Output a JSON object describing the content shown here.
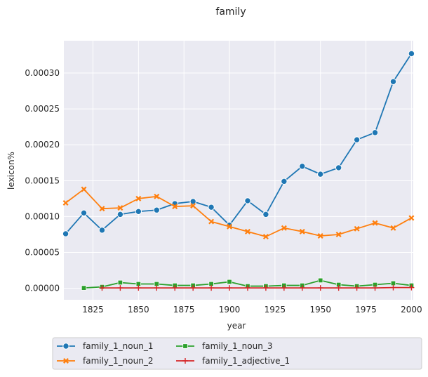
{
  "chart_data": {
    "type": "line",
    "title": "family",
    "xlabel": "year",
    "ylabel": "lexicon%",
    "xlim": [
      1809,
      2001
    ],
    "ylim": [
      -1.6e-05,
      0.000345
    ],
    "xticks": [
      1825,
      1850,
      1875,
      1900,
      1925,
      1950,
      1975,
      2000
    ],
    "yticks": [
      0.0,
      5e-05,
      0.0001,
      0.00015,
      0.0002,
      0.00025,
      0.0003
    ],
    "ytick_labels": [
      "0.00000",
      "0.00005",
      "0.00010",
      "0.00015",
      "0.00020",
      "0.00025",
      "0.00030"
    ],
    "grid": true,
    "legend_position": "bottom-center",
    "series": [
      {
        "name": "family_1_noun_1",
        "color": "#1f77b4",
        "marker": "circle",
        "x": [
          1810,
          1820,
          1830,
          1840,
          1850,
          1860,
          1870,
          1880,
          1890,
          1900,
          1910,
          1920,
          1930,
          1940,
          1950,
          1960,
          1970,
          1980,
          1990,
          2000
        ],
        "y": [
          7.6e-05,
          0.000105,
          8.1e-05,
          0.000103,
          0.000107,
          0.000109,
          0.000118,
          0.000121,
          0.000113,
          8.8e-05,
          0.000122,
          0.000103,
          0.000149,
          0.00017,
          0.000159,
          0.000168,
          0.000207,
          0.000217,
          0.000288,
          0.000327
        ]
      },
      {
        "name": "family_1_noun_2",
        "color": "#ff7f0e",
        "marker": "x",
        "x": [
          1810,
          1820,
          1830,
          1840,
          1850,
          1860,
          1870,
          1880,
          1890,
          1900,
          1910,
          1920,
          1930,
          1940,
          1950,
          1960,
          1970,
          1980,
          1990,
          2000
        ],
        "y": [
          0.000119,
          0.000138,
          0.000111,
          0.000112,
          0.000125,
          0.000128,
          0.000114,
          0.000115,
          9.3e-05,
          8.6e-05,
          7.9e-05,
          7.2e-05,
          8.4e-05,
          7.9e-05,
          7.3e-05,
          7.5e-05,
          8.3e-05,
          9.1e-05,
          8.4e-05,
          9.8e-05
        ]
      },
      {
        "name": "family_1_noun_3",
        "color": "#2ca02c",
        "marker": "square",
        "x": [
          1820,
          1830,
          1840,
          1850,
          1860,
          1870,
          1880,
          1890,
          1900,
          1910,
          1920,
          1930,
          1940,
          1950,
          1960,
          1970,
          1980,
          1990,
          2000
        ],
        "y": [
          5e-07,
          2e-06,
          8e-06,
          6e-06,
          6e-06,
          4e-06,
          4e-06,
          6e-06,
          9e-06,
          3e-06,
          3e-06,
          4e-06,
          4e-06,
          1.1e-05,
          5e-06,
          3e-06,
          5e-06,
          7e-06,
          4e-06
        ]
      },
      {
        "name": "family_1_adjective_1",
        "color": "#d62728",
        "marker": "plus",
        "x": [
          1830,
          1840,
          1850,
          1860,
          1870,
          1880,
          1890,
          1900,
          1910,
          1920,
          1930,
          1940,
          1950,
          1960,
          1970,
          1980,
          1990,
          2000
        ],
        "y": [
          5e-07,
          5e-07,
          5e-07,
          5e-07,
          5e-07,
          5e-07,
          5e-07,
          5e-07,
          5e-07,
          5e-07,
          5e-07,
          5e-07,
          5e-07,
          5e-07,
          5e-07,
          5e-07,
          1e-06,
          1e-06
        ]
      }
    ]
  },
  "colors": {
    "plot_background": "#eaeaf2",
    "grid": "#ffffff",
    "text": "#262626"
  }
}
